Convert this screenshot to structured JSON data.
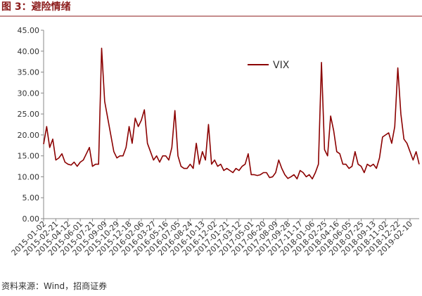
{
  "header": {
    "title": "图 3：避险情绪"
  },
  "chart_data": {
    "type": "line",
    "categories": [
      "2015-01-02",
      null,
      null,
      null,
      "2015-02-21",
      null,
      null,
      null,
      "2015-04-12",
      null,
      null,
      null,
      "2015-06-01",
      null,
      null,
      null,
      "2015-07-21",
      null,
      null,
      null,
      "2015-09-09",
      null,
      null,
      null,
      "2015-10-29",
      null,
      null,
      null,
      "2015-12-18",
      null,
      null,
      null,
      "2016-02-06",
      null,
      null,
      null,
      "2016-03-27",
      null,
      null,
      null,
      "2016-05-16",
      null,
      null,
      null,
      "2016-07-05",
      null,
      null,
      null,
      "2016-08-24",
      null,
      null,
      null,
      "2016-10-13",
      null,
      null,
      null,
      "2016-12-02",
      null,
      null,
      null,
      "2017-01-21",
      null,
      null,
      null,
      "2017-03-12",
      null,
      null,
      null,
      "2017-05-01",
      null,
      null,
      null,
      "2017-06-20",
      null,
      null,
      null,
      "2017-08-09",
      null,
      null,
      null,
      "2017-09-28",
      null,
      null,
      null,
      "2017-11-17",
      null,
      null,
      null,
      "2018-01-06",
      null,
      null,
      null,
      "2018-02-25",
      null,
      null,
      null,
      "2018-04-16",
      null,
      null,
      null,
      "2018-06-05",
      null,
      null,
      null,
      "2018-07-25",
      null,
      null,
      null,
      "2018-09-13",
      null,
      null,
      null,
      "2018-11-02",
      null,
      null,
      null,
      "2018-12-22",
      null,
      null,
      null,
      "2019-02-10",
      null,
      null,
      null
    ],
    "series": [
      {
        "name": "VIX",
        "color": "#8b0000",
        "values": [
          17.8,
          22,
          17,
          19,
          14,
          14.5,
          15.5,
          13.5,
          13,
          12.8,
          13.5,
          12.5,
          13.5,
          14,
          15.5,
          17,
          12.5,
          13,
          13,
          40.7,
          28,
          24,
          20,
          16,
          14.5,
          15,
          15,
          17,
          22,
          18,
          24,
          22,
          23.5,
          26,
          18,
          16,
          14,
          15,
          13.5,
          15,
          15,
          14,
          17,
          25.8,
          15,
          12.5,
          12,
          12,
          13,
          12,
          18,
          13,
          16,
          14,
          22.5,
          13,
          14,
          12.5,
          13,
          11.5,
          12,
          11.5,
          11,
          12,
          11.5,
          12.5,
          13,
          15.5,
          10.5,
          10.5,
          10.3,
          10.5,
          11,
          11,
          9.8,
          10,
          11,
          14,
          12,
          10.5,
          9.6,
          10,
          10.5,
          9.5,
          11.5,
          11,
          10,
          10.5,
          9.5,
          11,
          13,
          37.3,
          16.5,
          15,
          24.5,
          21,
          16,
          15.5,
          13,
          13,
          12,
          12.5,
          16,
          13,
          12.5,
          11,
          13,
          12.5,
          13,
          12,
          14.5,
          19.5,
          20,
          20.5,
          18,
          22,
          36,
          25,
          19,
          18,
          16,
          14,
          16,
          13
        ]
      }
    ],
    "ylim": [
      0,
      45
    ],
    "yticks": [
      {
        "value": 0,
        "label": "0.00"
      },
      {
        "value": 5,
        "label": "5.00"
      },
      {
        "value": 10,
        "label": "10.00"
      },
      {
        "value": 15,
        "label": "15.00"
      },
      {
        "value": 20,
        "label": "20.00"
      },
      {
        "value": 25,
        "label": "25.00"
      },
      {
        "value": 30,
        "label": "30.00"
      },
      {
        "value": 35,
        "label": "35.00"
      },
      {
        "value": 40,
        "label": "40.00"
      },
      {
        "value": 45,
        "label": "45.00"
      }
    ],
    "grid": false
  },
  "footer": {
    "source": "资料来源：Wind，招商证券"
  }
}
